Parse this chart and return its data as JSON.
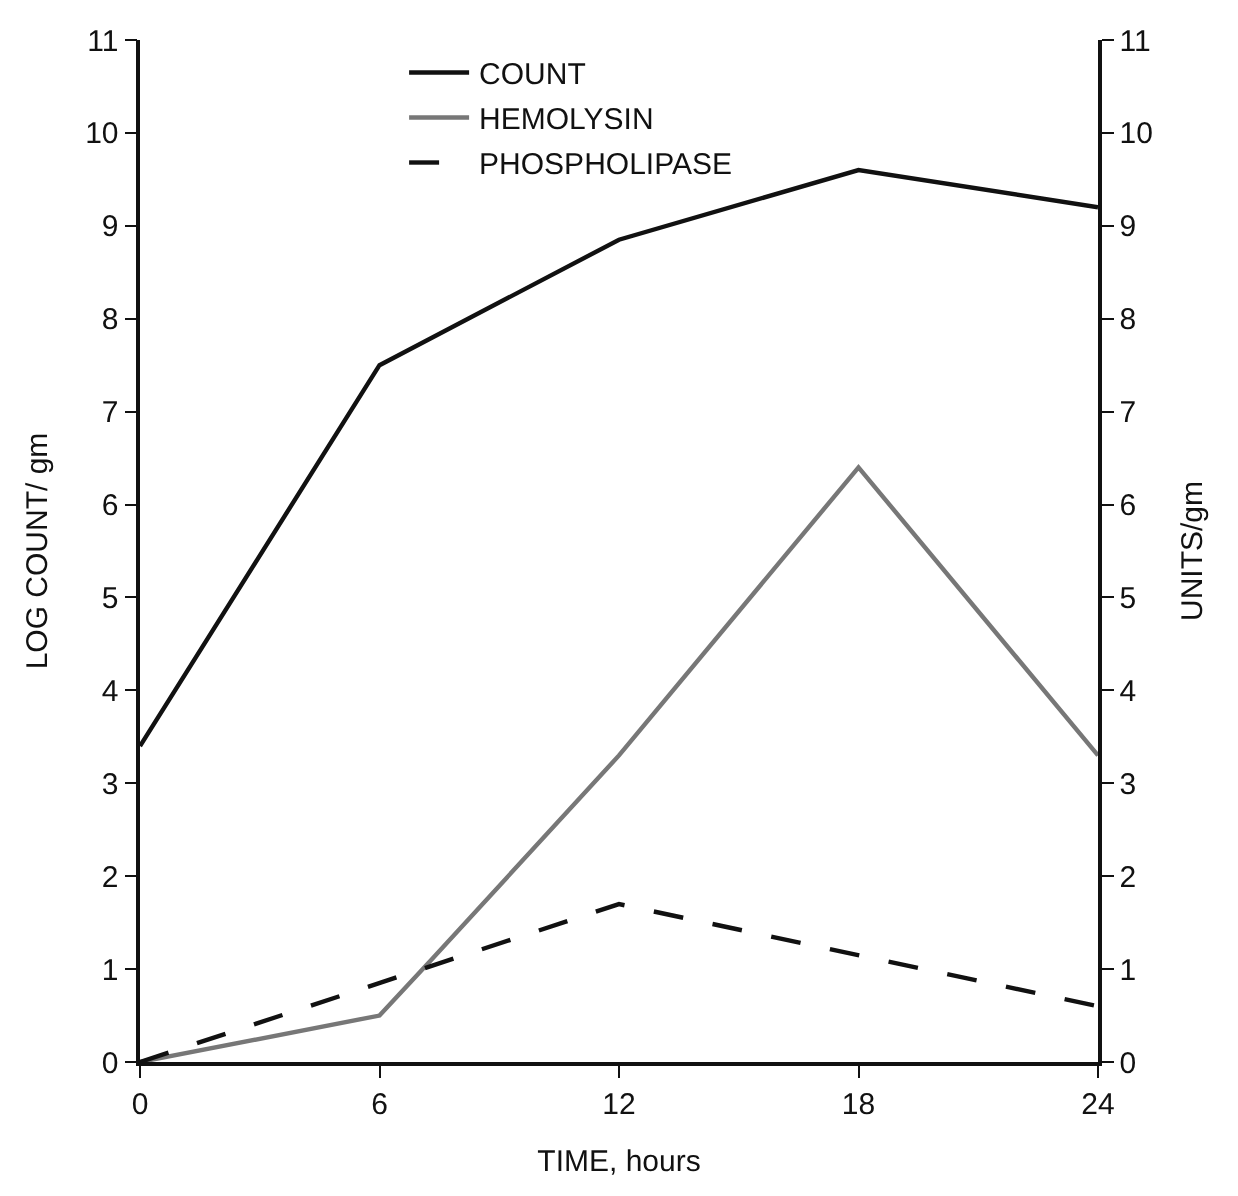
{
  "chart_data": {
    "type": "line",
    "xlabel": "TIME, hours",
    "ylabel": "LOG COUNT/ gm",
    "y2label": "UNITS/gm",
    "xlim": [
      0,
      24
    ],
    "xticks": [
      0,
      6,
      12,
      18,
      24
    ],
    "ylim": [
      0,
      11
    ],
    "yticks": [
      0,
      1,
      2,
      3,
      4,
      5,
      6,
      7,
      8,
      9,
      10,
      11
    ],
    "y2lim": [
      0,
      11
    ],
    "y2ticks": [
      0,
      1,
      2,
      3,
      4,
      5,
      6,
      7,
      8,
      9,
      10,
      11
    ],
    "legend": "top",
    "marker": "none",
    "series": [
      {
        "name": "COUNT",
        "color": "#111111",
        "x": [
          0,
          6,
          12,
          18,
          24
        ],
        "values": [
          3.4,
          7.5,
          8.85,
          9.6,
          9.2
        ],
        "line_style": "solid"
      },
      {
        "name": "HEMOLYSIN",
        "color": "#777777",
        "axis": "y2",
        "x": [
          0,
          6,
          7.3,
          12,
          18,
          24
        ],
        "values": [
          0,
          0.5,
          1.1,
          3.3,
          6.4,
          3.3
        ],
        "line_style": "solid"
      },
      {
        "name": "PHOSPHOLIPASE",
        "color": "#111111",
        "axis": "y2",
        "x": [
          0,
          12,
          24
        ],
        "values": [
          0,
          1.7,
          0.6
        ],
        "line_style": "dashed"
      }
    ]
  }
}
